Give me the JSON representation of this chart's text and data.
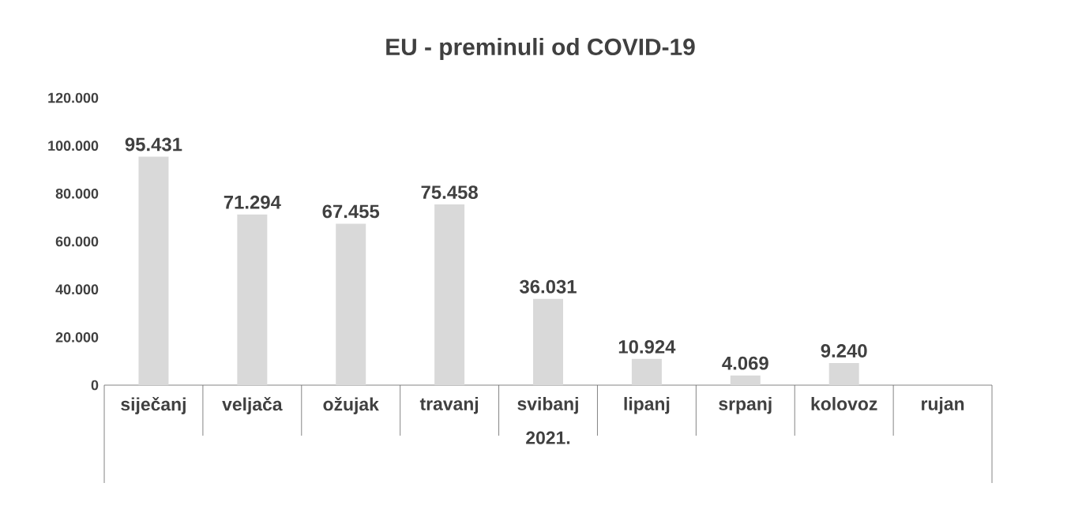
{
  "chart_data": {
    "type": "bar",
    "title": "EU - preminuli od COVID-19",
    "xlabel": "2021.",
    "categories": [
      "siječanj",
      "veljača",
      "ožujak",
      "travanj",
      "svibanj",
      "lipanj",
      "srpanj",
      "kolovoz",
      "rujan"
    ],
    "values": [
      95431,
      71294,
      67455,
      75458,
      36031,
      10924,
      4069,
      9240,
      null
    ],
    "value_labels": [
      "95.431",
      "71.294",
      "67.455",
      "75.458",
      "36.031",
      "10.924",
      "4.069",
      "9.240",
      null
    ],
    "color": "#d9d9d9",
    "ylim": [
      0,
      120000
    ],
    "yticks": [
      {
        "value": 0,
        "label": "0"
      },
      {
        "value": 20000,
        "label": "20.000"
      },
      {
        "value": 40000,
        "label": "40.000"
      },
      {
        "value": 60000,
        "label": "60.000"
      },
      {
        "value": 80000,
        "label": "80.000"
      },
      {
        "value": 100000,
        "label": "100.000"
      },
      {
        "value": 120000,
        "label": "120.000"
      }
    ],
    "grid": false
  }
}
